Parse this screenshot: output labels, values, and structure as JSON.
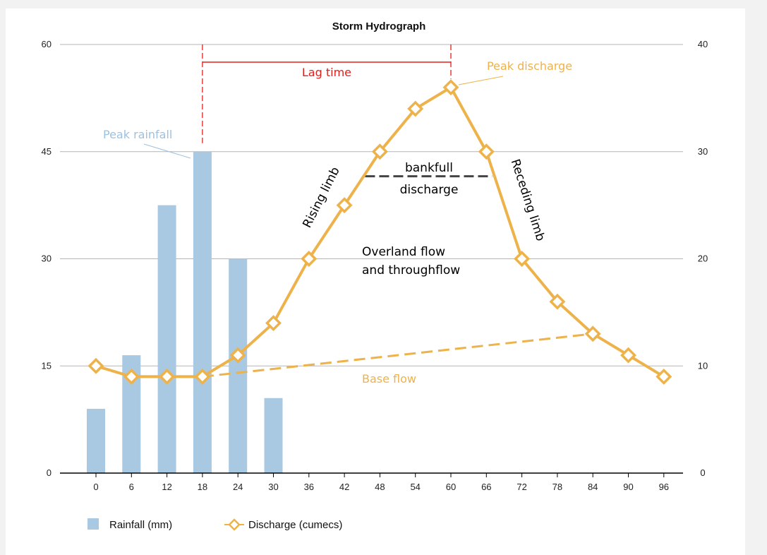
{
  "chart_data": {
    "type": "bar+line",
    "title": "Storm Hydrograph",
    "categories": [
      "0",
      "6",
      "12",
      "18",
      "24",
      "30",
      "36",
      "42",
      "48",
      "54",
      "60",
      "66",
      "72",
      "78",
      "84",
      "90",
      "96"
    ],
    "ylim_left": [
      0,
      60
    ],
    "yticks_left": [
      0,
      15,
      30,
      45,
      60
    ],
    "ylim_right": [
      0,
      40
    ],
    "yticks_right": [
      0,
      10,
      20,
      30,
      40
    ],
    "grid": true,
    "legend_position": "bottom-left",
    "series": [
      {
        "name": "Rainfall (mm)",
        "type": "bar",
        "axis": "left",
        "color": "#a9c8e2",
        "values": [
          9,
          16.5,
          37.5,
          45,
          30,
          10.5,
          null,
          null,
          null,
          null,
          null,
          null,
          null,
          null,
          null,
          null,
          null
        ]
      },
      {
        "name": "Discharge (cumecs)",
        "type": "line",
        "axis": "right",
        "color": "#eeb24a",
        "marker": "diamond",
        "values": [
          10,
          9,
          9,
          9,
          11,
          14,
          20,
          25,
          30,
          34,
          36,
          30,
          20,
          16,
          13,
          11,
          9
        ]
      }
    ],
    "base_flow_line": {
      "from": [
        "18",
        9
      ],
      "to": [
        "84",
        13
      ],
      "style": "dashed",
      "color": "#eeb24a"
    },
    "bankfull_line": {
      "from": [
        "45.5",
        27.7
      ],
      "to": [
        "67",
        27.7
      ],
      "style": "dashed",
      "color": "#444444"
    },
    "lag_time": {
      "from": "18",
      "to": "60",
      "color": "#e0201b"
    },
    "annotations": {
      "peak_rainfall": "Peak rainfall",
      "peak_discharge": "Peak discharge",
      "lag_time": "Lag time",
      "rising_limb": "Rising limb",
      "receding_limb": "Receding limb",
      "bankfull_1": "bankfull",
      "bankfull_2": "discharge",
      "overland_1": "Overland flow",
      "overland_2": "and throughflow",
      "base_flow": "Base flow"
    },
    "colors": {
      "rain": "#a9c8e2",
      "rain_text": "#9dc1e0",
      "discharge": "#eeb24a",
      "lag": "#e0201b",
      "grid": "#b5b5b5"
    }
  }
}
